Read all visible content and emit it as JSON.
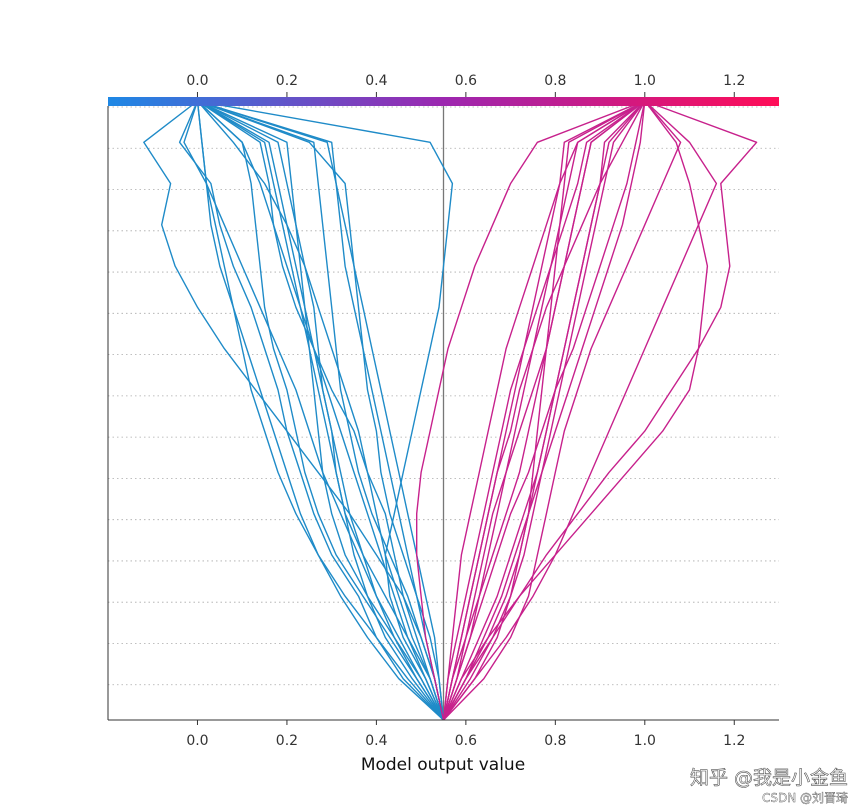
{
  "chart_data": {
    "type": "line",
    "title": "",
    "xlabel": "Model output value",
    "ylabel": "",
    "xlim": [
      -0.2,
      1.3
    ],
    "x_ticks": [
      "0.0",
      "0.2",
      "0.4",
      "0.6",
      "0.8",
      "1.0",
      "1.2"
    ],
    "x_tick_values": [
      0.0,
      0.2,
      0.4,
      0.6,
      0.8,
      1.0,
      1.2
    ],
    "base_value": 0.55,
    "feature_rows": 15,
    "grid": "dotted horizontal lines per feature row",
    "colormap": {
      "low": "#1E88E5",
      "mid": "#9C27B0",
      "high": "#FF0D57",
      "range": [
        -0.2,
        1.3
      ]
    },
    "series_description": "Decision paths; each line runs from the base value at the bottom to its final model output at the top. Coordinates are listed bottom (row 0) to top (row 15).",
    "series": [
      {
        "values": [
          0.55,
          0.52,
          0.48,
          0.45,
          0.42,
          0.4,
          0.38,
          0.36,
          0.33,
          0.3,
          0.27,
          0.24,
          0.2,
          0.15,
          0.08,
          0.0
        ]
      },
      {
        "values": [
          0.55,
          0.5,
          0.45,
          0.4,
          0.36,
          0.32,
          0.28,
          0.25,
          0.22,
          0.18,
          0.14,
          0.1,
          0.06,
          0.02,
          -0.03,
          0.0
        ]
      },
      {
        "values": [
          0.55,
          0.53,
          0.5,
          0.46,
          0.4,
          0.34,
          0.27,
          0.2,
          0.13,
          0.06,
          0.0,
          -0.05,
          -0.08,
          -0.06,
          -0.12,
          0.0
        ]
      },
      {
        "values": [
          0.55,
          0.47,
          0.4,
          0.33,
          0.27,
          0.22,
          0.18,
          0.15,
          0.12,
          0.1,
          0.08,
          0.05,
          0.03,
          0.02,
          0.01,
          0.0
        ]
      },
      {
        "values": [
          0.55,
          0.54,
          0.52,
          0.49,
          0.46,
          0.43,
          0.41,
          0.4,
          0.38,
          0.37,
          0.36,
          0.35,
          0.34,
          0.33,
          0.25,
          0.0
        ]
      },
      {
        "values": [
          0.55,
          0.51,
          0.46,
          0.43,
          0.42,
          0.44,
          0.46,
          0.48,
          0.5,
          0.52,
          0.54,
          0.55,
          0.56,
          0.57,
          0.52,
          0.0
        ]
      },
      {
        "values": [
          0.55,
          0.49,
          0.43,
          0.37,
          0.31,
          0.27,
          0.24,
          0.22,
          0.2,
          0.17,
          0.15,
          0.14,
          0.13,
          0.12,
          0.1,
          0.0
        ]
      },
      {
        "values": [
          0.55,
          0.52,
          0.49,
          0.46,
          0.44,
          0.42,
          0.38,
          0.35,
          0.3,
          0.26,
          0.22,
          0.19,
          0.17,
          0.16,
          0.14,
          0.0
        ]
      },
      {
        "values": [
          0.55,
          0.48,
          0.42,
          0.38,
          0.35,
          0.33,
          0.31,
          0.3,
          0.28,
          0.27,
          0.26,
          0.24,
          0.22,
          0.2,
          0.18,
          0.0
        ]
      },
      {
        "values": [
          0.55,
          0.5,
          0.44,
          0.38,
          0.33,
          0.3,
          0.28,
          0.27,
          0.26,
          0.25,
          0.24,
          0.23,
          0.22,
          0.21,
          0.2,
          0.0
        ]
      },
      {
        "values": [
          0.55,
          0.53,
          0.51,
          0.49,
          0.47,
          0.45,
          0.43,
          0.41,
          0.39,
          0.37,
          0.35,
          0.33,
          0.32,
          0.31,
          0.3,
          0.0
        ]
      },
      {
        "values": [
          0.55,
          0.46,
          0.4,
          0.36,
          0.3,
          0.26,
          0.23,
          0.2,
          0.18,
          0.15,
          0.12,
          0.08,
          0.05,
          0.03,
          -0.04,
          0.0
        ]
      },
      {
        "values": [
          0.55,
          0.52,
          0.47,
          0.42,
          0.37,
          0.33,
          0.31,
          0.29,
          0.27,
          0.25,
          0.23,
          0.21,
          0.19,
          0.17,
          0.15,
          0.0
        ]
      },
      {
        "values": [
          0.55,
          0.54,
          0.53,
          0.51,
          0.49,
          0.47,
          0.45,
          0.43,
          0.41,
          0.39,
          0.37,
          0.35,
          0.33,
          0.31,
          0.29,
          0.0
        ]
      },
      {
        "values": [
          0.55,
          0.45,
          0.38,
          0.32,
          0.27,
          0.23,
          0.2,
          0.17,
          0.14,
          0.11,
          0.08,
          0.06,
          0.04,
          0.02,
          0.01,
          0.0
        ]
      },
      {
        "values": [
          0.55,
          0.51,
          0.47,
          0.44,
          0.41,
          0.38,
          0.35,
          0.32,
          0.29,
          0.26,
          0.23,
          0.2,
          0.17,
          0.14,
          0.1,
          0.0
        ]
      },
      {
        "values": [
          0.55,
          0.53,
          0.5,
          0.47,
          0.43,
          0.39,
          0.36,
          0.34,
          0.32,
          0.31,
          0.3,
          0.29,
          0.28,
          0.27,
          0.26,
          0.0
        ]
      },
      {
        "values": [
          0.55,
          0.49,
          0.44,
          0.4,
          0.37,
          0.34,
          0.32,
          0.3,
          0.28,
          0.26,
          0.24,
          0.22,
          0.2,
          0.18,
          0.16,
          0.0
        ]
      },
      {
        "values": [
          0.55,
          0.58,
          0.61,
          0.64,
          0.67,
          0.7,
          0.74,
          0.77,
          0.8,
          0.84,
          0.87,
          0.9,
          0.93,
          0.96,
          0.98,
          1.0
        ]
      },
      {
        "values": [
          0.55,
          0.6,
          0.66,
          0.72,
          0.78,
          0.85,
          0.92,
          1.0,
          1.06,
          1.12,
          1.17,
          1.19,
          1.18,
          1.17,
          1.25,
          1.0
        ]
      },
      {
        "values": [
          0.55,
          0.57,
          0.59,
          0.61,
          0.63,
          0.65,
          0.67,
          0.7,
          0.72,
          0.75,
          0.78,
          0.82,
          0.86,
          0.9,
          0.95,
          1.0
        ]
      },
      {
        "values": [
          0.55,
          0.62,
          0.69,
          0.75,
          0.8,
          0.84,
          0.88,
          0.92,
          0.96,
          1.0,
          1.04,
          1.08,
          1.12,
          1.16,
          1.1,
          1.0
        ]
      },
      {
        "values": [
          0.55,
          0.56,
          0.57,
          0.58,
          0.59,
          0.61,
          0.63,
          0.65,
          0.67,
          0.69,
          0.72,
          0.75,
          0.78,
          0.81,
          0.85,
          1.0
        ]
      },
      {
        "values": [
          0.55,
          0.59,
          0.63,
          0.67,
          0.7,
          0.73,
          0.76,
          0.78,
          0.8,
          0.82,
          0.84,
          0.86,
          0.88,
          0.9,
          0.92,
          1.0
        ]
      },
      {
        "values": [
          0.55,
          0.61,
          0.66,
          0.7,
          0.73,
          0.75,
          0.77,
          0.79,
          0.81,
          0.83,
          0.85,
          0.87,
          0.89,
          0.91,
          0.93,
          1.0
        ]
      },
      {
        "values": [
          0.55,
          0.58,
          0.6,
          0.62,
          0.64,
          0.66,
          0.69,
          0.72,
          0.75,
          0.78,
          0.8,
          0.82,
          0.84,
          0.86,
          0.88,
          1.0
        ]
      },
      {
        "values": [
          0.55,
          0.64,
          0.7,
          0.74,
          0.76,
          0.78,
          0.8,
          0.82,
          0.85,
          0.88,
          0.92,
          0.96,
          1.0,
          1.04,
          1.08,
          1.0
        ]
      },
      {
        "values": [
          0.55,
          0.56,
          0.58,
          0.6,
          0.62,
          0.64,
          0.66,
          0.68,
          0.7,
          0.73,
          0.76,
          0.79,
          0.82,
          0.85,
          0.87,
          1.0
        ]
      },
      {
        "values": [
          0.55,
          0.6,
          0.64,
          0.68,
          0.71,
          0.74,
          0.77,
          0.8,
          0.83,
          0.86,
          0.89,
          0.92,
          0.95,
          0.97,
          0.99,
          1.0
        ]
      },
      {
        "values": [
          0.55,
          0.57,
          0.6,
          0.63,
          0.66,
          0.69,
          0.72,
          0.74,
          0.76,
          0.78,
          0.8,
          0.82,
          0.84,
          0.86,
          0.88,
          1.0
        ]
      },
      {
        "values": [
          0.55,
          0.62,
          0.67,
          0.7,
          0.72,
          0.74,
          0.75,
          0.76,
          0.77,
          0.78,
          0.79,
          0.8,
          0.81,
          0.82,
          0.83,
          1.0
        ]
      },
      {
        "values": [
          0.55,
          0.53,
          0.51,
          0.5,
          0.49,
          0.49,
          0.5,
          0.52,
          0.54,
          0.56,
          0.59,
          0.62,
          0.66,
          0.7,
          0.76,
          1.0
        ]
      },
      {
        "values": [
          0.55,
          0.58,
          0.61,
          0.63,
          0.65,
          0.67,
          0.69,
          0.71,
          0.73,
          0.75,
          0.77,
          0.79,
          0.81,
          0.83,
          0.85,
          1.0
        ]
      },
      {
        "values": [
          0.55,
          0.59,
          0.65,
          0.72,
          0.8,
          0.88,
          0.96,
          1.04,
          1.1,
          1.12,
          1.13,
          1.14,
          1.12,
          1.1,
          1.07,
          1.0
        ]
      },
      {
        "values": [
          0.55,
          0.57,
          0.59,
          0.61,
          0.63,
          0.65,
          0.67,
          0.69,
          0.71,
          0.73,
          0.75,
          0.77,
          0.79,
          0.81,
          0.82,
          1.0
        ]
      },
      {
        "values": [
          0.55,
          0.6,
          0.65,
          0.69,
          0.72,
          0.74,
          0.76,
          0.78,
          0.8,
          0.82,
          0.84,
          0.86,
          0.88,
          0.9,
          0.91,
          1.0
        ]
      }
    ]
  },
  "watermark": {
    "text": "知乎 @我是小金鱼",
    "sub": "CSDN @刘晋琦"
  }
}
